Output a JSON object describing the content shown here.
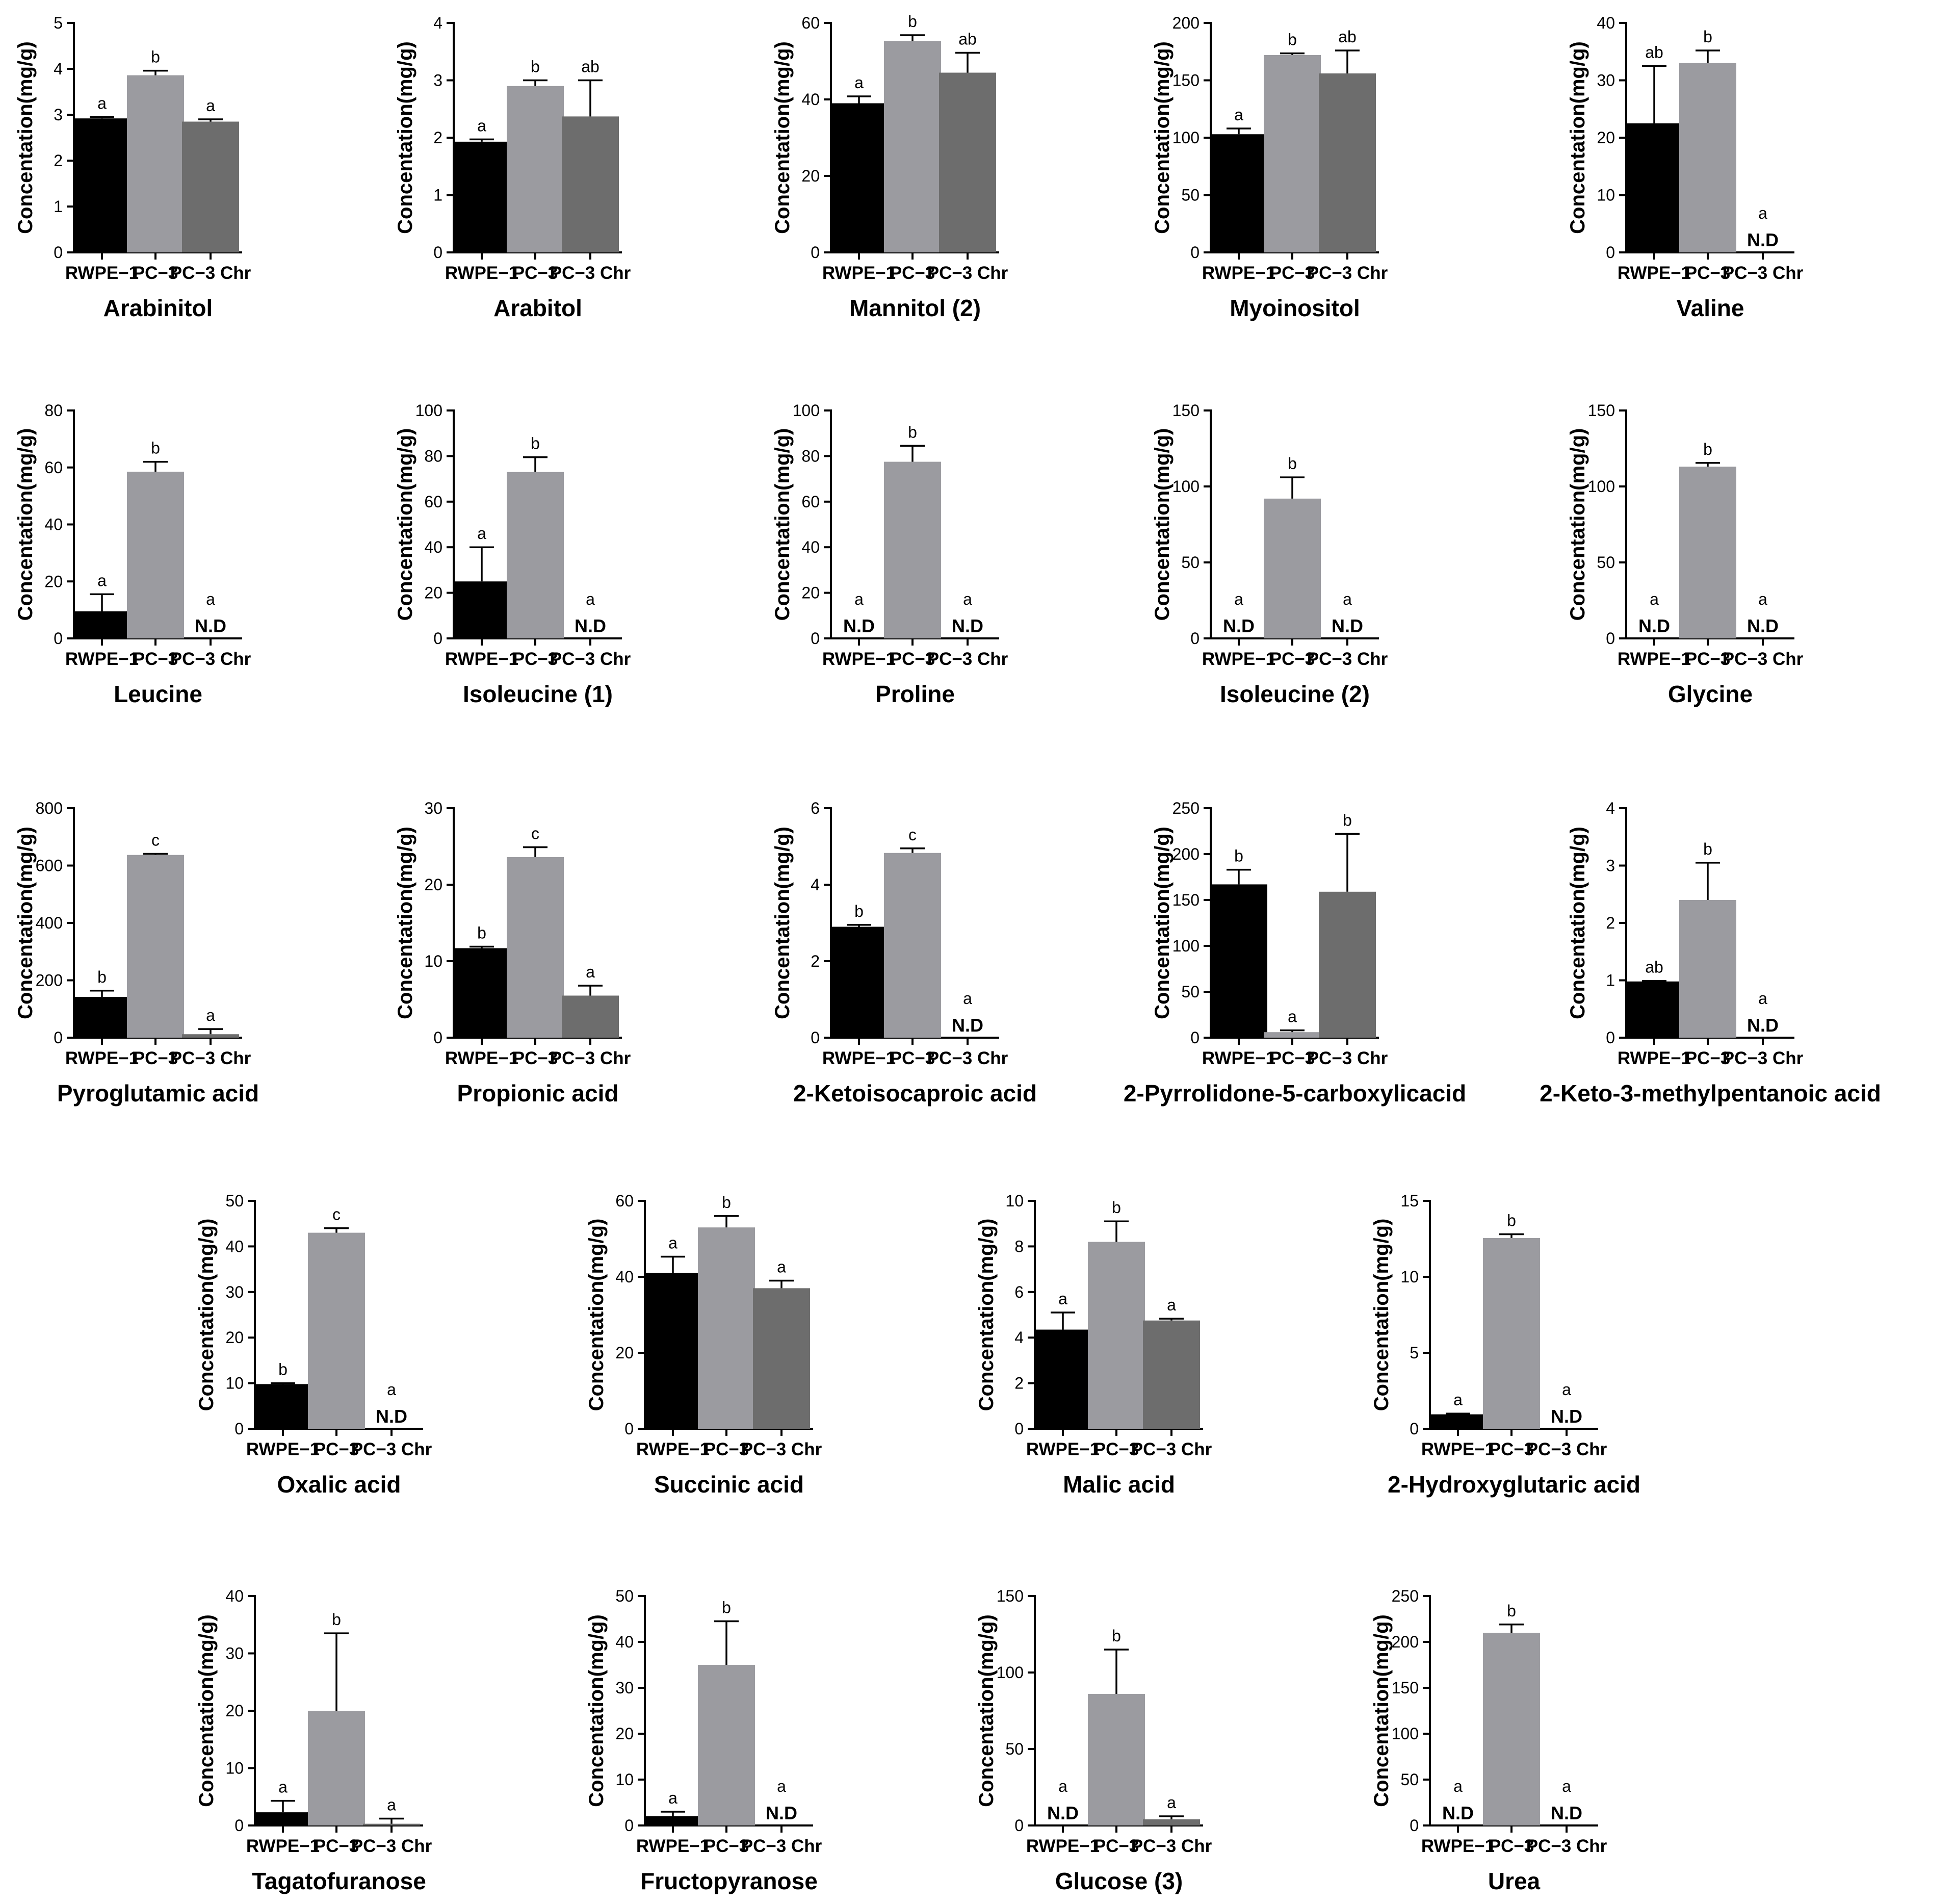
{
  "figure": {
    "ylabel": "Concentation(mg/g)",
    "categories": [
      "RWPE−1",
      "PC−3",
      "PC−3 Chr"
    ],
    "nd_label": "N.D",
    "colors": {
      "RWPE-1": "#000000",
      "PC-3": "#9b9ba0",
      "PC-3 Chr": "#6d6d6d",
      "axis": "#000000"
    }
  },
  "chart_data": [
    {
      "type": "bar",
      "title": "Arabinitol",
      "ylim": [
        0,
        5
      ],
      "yticks": [
        0,
        1,
        2,
        3,
        4,
        5
      ],
      "values": [
        2.92,
        3.86,
        2.85
      ],
      "errors": [
        0.03,
        0.1,
        0.05
      ],
      "letters": [
        "a",
        "b",
        "a"
      ],
      "nd": [
        false,
        false,
        false
      ]
    },
    {
      "type": "bar",
      "title": "Arabitol",
      "ylim": [
        0,
        4
      ],
      "yticks": [
        0,
        1,
        2,
        3,
        4
      ],
      "values": [
        1.93,
        2.9,
        2.37
      ],
      "errors": [
        0.04,
        0.1,
        0.63
      ],
      "letters": [
        "a",
        "b",
        "ab"
      ],
      "nd": [
        false,
        false,
        false
      ]
    },
    {
      "type": "bar",
      "title": "Mannitol  (2)",
      "ylim": [
        0,
        60
      ],
      "yticks": [
        0,
        20,
        40,
        60
      ],
      "values": [
        39,
        55.3,
        47
      ],
      "errors": [
        1.8,
        1.5,
        5.2
      ],
      "letters": [
        "a",
        "b",
        "ab"
      ],
      "nd": [
        false,
        false,
        false
      ]
    },
    {
      "type": "bar",
      "title": "Myoinositol",
      "ylim": [
        0,
        200
      ],
      "yticks": [
        0,
        50,
        100,
        150,
        200
      ],
      "values": [
        103,
        172,
        156
      ],
      "errors": [
        5,
        1.5,
        20
      ],
      "letters": [
        "a",
        "b",
        "ab"
      ],
      "nd": [
        false,
        false,
        false
      ]
    },
    {
      "type": "bar",
      "title": "Valine",
      "ylim": [
        0,
        40
      ],
      "yticks": [
        0,
        10,
        20,
        30,
        40
      ],
      "values": [
        22.5,
        33,
        0
      ],
      "errors": [
        10,
        2.2,
        0
      ],
      "letters": [
        "ab",
        "b",
        "a"
      ],
      "nd": [
        false,
        false,
        true
      ]
    },
    {
      "type": "bar",
      "title": "Leucine",
      "ylim": [
        0,
        80
      ],
      "yticks": [
        0,
        20,
        40,
        60,
        80
      ],
      "values": [
        9.5,
        58.5,
        0
      ],
      "errors": [
        6,
        3.5,
        0
      ],
      "letters": [
        "a",
        "b",
        "a"
      ],
      "nd": [
        false,
        false,
        true
      ]
    },
    {
      "type": "bar",
      "title": "Isoleucine (1)",
      "ylim": [
        0,
        100
      ],
      "yticks": [
        0,
        20,
        40,
        60,
        80,
        100
      ],
      "values": [
        25,
        73,
        0
      ],
      "errors": [
        15,
        6.5,
        0
      ],
      "letters": [
        "a",
        "b",
        "a"
      ],
      "nd": [
        false,
        false,
        true
      ]
    },
    {
      "type": "bar",
      "title": "Proline",
      "ylim": [
        0,
        100
      ],
      "yticks": [
        0,
        20,
        40,
        60,
        80,
        100
      ],
      "values": [
        0,
        77.5,
        0
      ],
      "errors": [
        0,
        7,
        0
      ],
      "letters": [
        "a",
        "b",
        "a"
      ],
      "nd": [
        true,
        false,
        true
      ]
    },
    {
      "type": "bar",
      "title": "Isoleucine (2)",
      "ylim": [
        0,
        150
      ],
      "yticks": [
        0,
        50,
        100,
        150
      ],
      "values": [
        0,
        92,
        0
      ],
      "errors": [
        0,
        14,
        0
      ],
      "letters": [
        "a",
        "b",
        "a"
      ],
      "nd": [
        true,
        false,
        true
      ]
    },
    {
      "type": "bar",
      "title": "Glycine",
      "ylim": [
        0,
        150
      ],
      "yticks": [
        0,
        50,
        100,
        150
      ],
      "values": [
        0,
        113,
        0
      ],
      "errors": [
        0,
        2.5,
        0
      ],
      "letters": [
        "a",
        "b",
        "a"
      ],
      "nd": [
        true,
        false,
        true
      ]
    },
    {
      "type": "bar",
      "title": "Pyroglutamic acid",
      "ylim": [
        0,
        800
      ],
      "yticks": [
        0,
        200,
        400,
        600,
        800
      ],
      "values": [
        142,
        637,
        12
      ],
      "errors": [
        22,
        4,
        18
      ],
      "letters": [
        "b",
        "c",
        "a"
      ],
      "nd": [
        false,
        false,
        false
      ]
    },
    {
      "type": "bar",
      "title": "Propionic acid",
      "ylim": [
        0,
        30
      ],
      "yticks": [
        0,
        10,
        20,
        30
      ],
      "values": [
        11.7,
        23.6,
        5.5
      ],
      "errors": [
        0.2,
        1.3,
        1.3
      ],
      "letters": [
        "b",
        "c",
        "a"
      ],
      "nd": [
        false,
        false,
        false
      ]
    },
    {
      "type": "bar",
      "title": "2-Ketoisocaproic acid",
      "ylim": [
        0,
        6
      ],
      "yticks": [
        0,
        2,
        4,
        6
      ],
      "values": [
        2.9,
        4.83,
        0
      ],
      "errors": [
        0.05,
        0.12,
        0
      ],
      "letters": [
        "b",
        "c",
        "a"
      ],
      "nd": [
        false,
        false,
        true
      ]
    },
    {
      "type": "bar",
      "title": "2-Pyrrolidone-5-carboxylicacid",
      "ylim": [
        0,
        250
      ],
      "yticks": [
        0,
        50,
        100,
        150,
        200,
        250
      ],
      "values": [
        167,
        6,
        159
      ],
      "errors": [
        16,
        2,
        63
      ],
      "letters": [
        "b",
        "a",
        "b"
      ],
      "nd": [
        false,
        false,
        false
      ]
    },
    {
      "type": "bar",
      "title": "2-Keto-3-methylpentanoic acid",
      "ylim": [
        0,
        4
      ],
      "yticks": [
        0,
        1,
        2,
        3,
        4
      ],
      "values": [
        0.98,
        2.4,
        0
      ],
      "errors": [
        0.01,
        0.65,
        0
      ],
      "letters": [
        "ab",
        "b",
        "a"
      ],
      "nd": [
        false,
        false,
        true
      ]
    },
    {
      "type": "bar",
      "title": "Oxalic acid",
      "ylim": [
        0,
        50
      ],
      "yticks": [
        0,
        10,
        20,
        30,
        40,
        50
      ],
      "values": [
        9.8,
        43,
        0
      ],
      "errors": [
        0.2,
        1,
        0
      ],
      "letters": [
        "b",
        "c",
        "a"
      ],
      "nd": [
        false,
        false,
        true
      ]
    },
    {
      "type": "bar",
      "title": "Succinic acid",
      "ylim": [
        0,
        60
      ],
      "yticks": [
        0,
        20,
        40,
        60
      ],
      "values": [
        41,
        53,
        37
      ],
      "errors": [
        4.3,
        3,
        2
      ],
      "letters": [
        "a",
        "b",
        "a"
      ],
      "nd": [
        false,
        false,
        false
      ]
    },
    {
      "type": "bar",
      "title": "Malic acid",
      "ylim": [
        0,
        10
      ],
      "yticks": [
        0,
        2,
        4,
        6,
        8,
        10
      ],
      "values": [
        4.35,
        8.2,
        4.75
      ],
      "errors": [
        0.75,
        0.9,
        0.08
      ],
      "letters": [
        "a",
        "b",
        "a"
      ],
      "nd": [
        false,
        false,
        false
      ]
    },
    {
      "type": "bar",
      "title": "2-Hydroxyglutaric acid",
      "ylim": [
        0,
        15
      ],
      "yticks": [
        0,
        5,
        10,
        15
      ],
      "values": [
        0.95,
        12.55,
        0
      ],
      "errors": [
        0.05,
        0.25,
        0
      ],
      "letters": [
        "a",
        "b",
        "a"
      ],
      "nd": [
        false,
        false,
        true
      ]
    },
    {
      "type": "bar",
      "title": "Tagatofuranose",
      "ylim": [
        0,
        40
      ],
      "yticks": [
        0,
        10,
        20,
        30,
        40
      ],
      "values": [
        2.3,
        20,
        0.3
      ],
      "errors": [
        2,
        13.5,
        0.9
      ],
      "letters": [
        "a",
        "b",
        "a"
      ],
      "nd": [
        false,
        false,
        false
      ]
    },
    {
      "type": "bar",
      "title": "Fructopyranose",
      "ylim": [
        0,
        50
      ],
      "yticks": [
        0,
        10,
        20,
        30,
        40,
        50
      ],
      "values": [
        2,
        35,
        0
      ],
      "errors": [
        1,
        9.5,
        0
      ],
      "letters": [
        "a",
        "b",
        "a"
      ],
      "nd": [
        false,
        false,
        true
      ]
    },
    {
      "type": "bar",
      "title": "Glucose (3)",
      "ylim": [
        0,
        150
      ],
      "yticks": [
        0,
        50,
        100,
        150
      ],
      "values": [
        0,
        86,
        4
      ],
      "errors": [
        0,
        29,
        2
      ],
      "letters": [
        "a",
        "b",
        "a"
      ],
      "nd": [
        true,
        false,
        false
      ]
    },
    {
      "type": "bar",
      "title": "Urea",
      "ylim": [
        0,
        250
      ],
      "yticks": [
        0,
        50,
        100,
        150,
        200,
        250
      ],
      "values": [
        0,
        210,
        0
      ],
      "errors": [
        0,
        9,
        0
      ],
      "letters": [
        "a",
        "b",
        "a"
      ],
      "nd": [
        true,
        false,
        true
      ]
    }
  ]
}
